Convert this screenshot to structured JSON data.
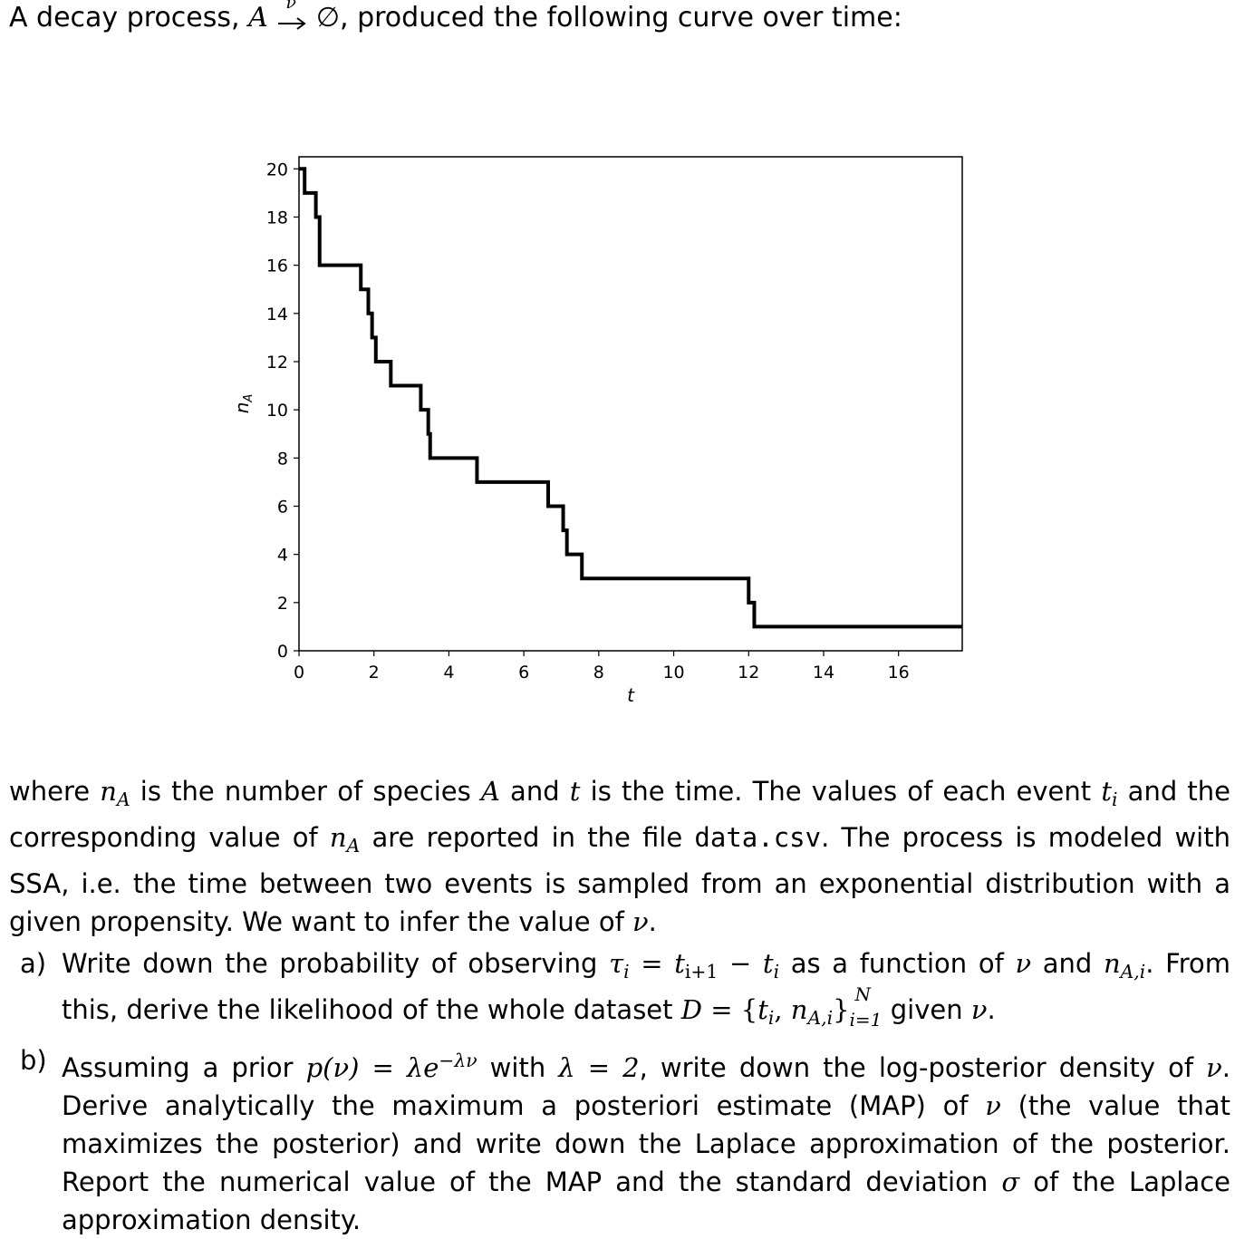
{
  "intro": {
    "text_before": "A decay process, ",
    "species": "A",
    "rate": "ν",
    "product": "∅",
    "text_after": ", produced the following curve over time:"
  },
  "chart_data": {
    "type": "line",
    "step": true,
    "xlabel": "t",
    "ylabel": "n_A",
    "xlim": [
      0,
      17.7
    ],
    "ylim": [
      0,
      20.5
    ],
    "xticks": [
      "0",
      "2",
      "4",
      "6",
      "8",
      "10",
      "12",
      "14",
      "16"
    ],
    "yticks": [
      "0",
      "2",
      "4",
      "6",
      "8",
      "10",
      "12",
      "14",
      "16",
      "18",
      "20"
    ],
    "grid": false,
    "x": [
      0.0,
      0.15,
      0.45,
      0.55,
      1.65,
      1.85,
      1.95,
      2.05,
      2.45,
      3.25,
      3.45,
      3.5,
      4.75,
      6.65,
      7.05,
      7.15,
      7.55,
      12.0,
      12.15,
      17.7
    ],
    "y": [
      20,
      19,
      18,
      16,
      15,
      14,
      13,
      12,
      11,
      10,
      9,
      8,
      7,
      6,
      5,
      4,
      3,
      2,
      1,
      1
    ]
  },
  "paragraph": {
    "p1": "where ",
    "nA1": "n",
    "nA1_sub": "A",
    "p2": " is the number of species ",
    "A1": "A",
    "p3": " and ",
    "t1": "t",
    "p4": " is the time. The values of each event ",
    "ti": "t",
    "ti_sub": "i",
    "p5": " and the corresponding value of ",
    "nA2": "n",
    "nA2_sub": "A",
    "p6": " are reported in the file ",
    "file": "data.csv",
    "p7": ". The process is modeled with SSA, i.e. the time between two events is sampled from an exponential distribution with a given propensity. We want to infer the value of ",
    "nu": "ν",
    "p8": "."
  },
  "item_a": {
    "label": "a)",
    "t1": "Write down the probability of observing ",
    "tau": "τ",
    "tau_sub": "i",
    "eq": " = ",
    "tip1": "t",
    "tip1_sub": "i+1",
    "minus": " − ",
    "ti": "t",
    "ti_sub": "i",
    "t2": " as a function of ",
    "nu1": "ν",
    "t3": " and ",
    "nAi": "n",
    "nAi_sub": "A,i",
    "t4": ". From this, derive the likelihood of the whole dataset ",
    "D": "D",
    "eq2": " = {",
    "t_in": "t",
    "t_in_sub": "i",
    "comma": ", ",
    "n_in": "n",
    "n_in_sub": "A,i",
    "close": "}",
    "sup_N": "N",
    "sub_i1": "i=1",
    "t5": " given ",
    "nu2": "ν",
    "t6": "."
  },
  "item_b": {
    "label": "b)",
    "t1": "Assuming a prior ",
    "prior": "p",
    "prior_arg": "(ν) = λe",
    "prior_exp": "−λν",
    "t2": " with ",
    "lam": "λ = 2",
    "t3": ", write down the log-posterior density of ",
    "nu1": "ν",
    "t4": ". Derive analytically the maximum a posteriori estimate (MAP) of ",
    "nu2": "ν",
    "t5": " (the value that maximizes the posterior) and write down the Laplace approximation of the posterior. Report the numerical value of the MAP and the standard deviation ",
    "sigma": "σ",
    "t6": " of the Laplace approximation density."
  }
}
